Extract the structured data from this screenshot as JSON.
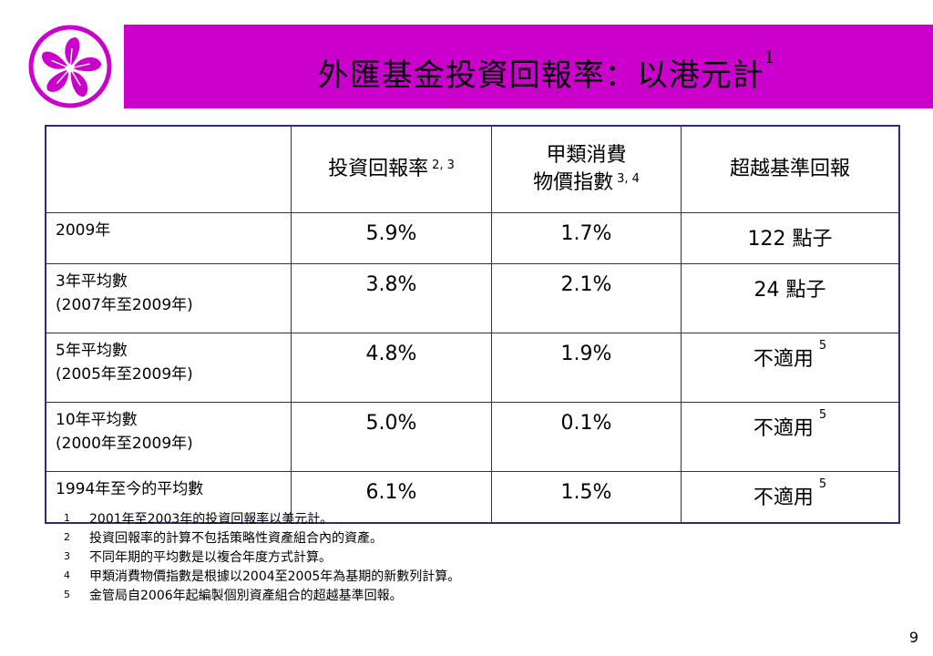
{
  "title": "外匯基金投資回報率：以港元計",
  "title_note": "1",
  "logo": {
    "icon": "bauhinia-flower-icon",
    "color": "#CC00CC"
  },
  "colors": {
    "title_bar": "#CC00CC",
    "table_border": "#2a2a8a"
  },
  "table": {
    "headers": [
      {
        "label": "",
        "note": ""
      },
      {
        "label": "投資回報率",
        "note": "2, 3"
      },
      {
        "label_line1": "甲類消費",
        "label_line2": "物價指數",
        "note": "3, 4"
      },
      {
        "label": "超越基準回報",
        "note": ""
      }
    ],
    "rows": [
      {
        "label_line1": "2009年",
        "label_line2": "",
        "return": "5.9%",
        "cpi": "1.7%",
        "excess": "122 點子",
        "excess_note": ""
      },
      {
        "label_line1": "3年平均數",
        "label_line2": "(2007年至2009年)",
        "return": "3.8%",
        "cpi": "2.1%",
        "excess": "24 點子",
        "excess_note": ""
      },
      {
        "label_line1": "5年平均數",
        "label_line2": "(2005年至2009年)",
        "return": "4.8%",
        "cpi": "1.9%",
        "excess": "不適用",
        "excess_note": "5"
      },
      {
        "label_line1": "10年平均數",
        "label_line2": "(2000年至2009年)",
        "return": "5.0%",
        "cpi": "0.1%",
        "excess": "不適用",
        "excess_note": "5"
      },
      {
        "label_line1": "1994年至今的平均數",
        "label_line2": "",
        "return": "6.1%",
        "cpi": "1.5%",
        "excess": "不適用",
        "excess_note": "5"
      }
    ]
  },
  "footnotes": [
    {
      "num": "1",
      "text": "2001年至2003年的投資回報率以美元計。"
    },
    {
      "num": "2",
      "text": "投資回報率的計算不包括策略性資產組合內的資產。"
    },
    {
      "num": "3",
      "text": "不同年期的平均數是以複合年度方式計算。"
    },
    {
      "num": "4",
      "text": "甲類消費物價指數是根據以2004至2005年為基期的新數列計算。"
    },
    {
      "num": "5",
      "text": "金管局自2006年起編製個別資產組合的超越基準回報。"
    }
  ],
  "page_number": "9"
}
